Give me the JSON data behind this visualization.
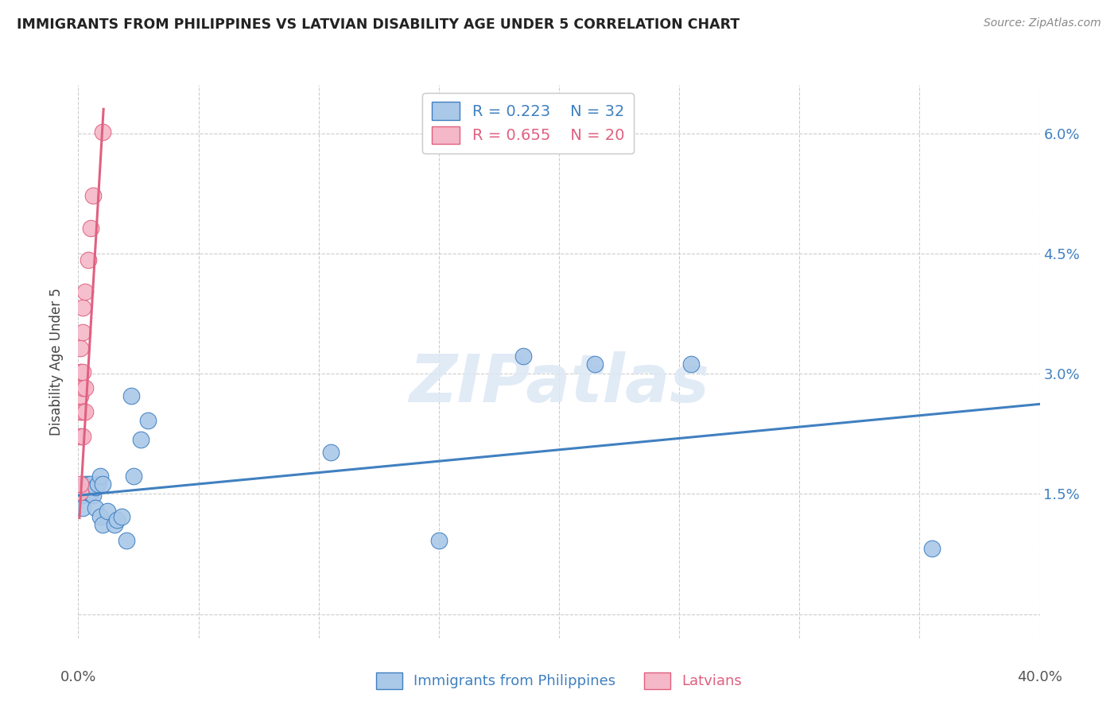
{
  "title": "IMMIGRANTS FROM PHILIPPINES VS LATVIAN DISABILITY AGE UNDER 5 CORRELATION CHART",
  "source": "Source: ZipAtlas.com",
  "ylabel": "Disability Age Under 5",
  "yticks": [
    0.0,
    0.015,
    0.03,
    0.045,
    0.06
  ],
  "ytick_labels": [
    "",
    "1.5%",
    "3.0%",
    "4.5%",
    "6.0%"
  ],
  "xlim": [
    0.0,
    0.4
  ],
  "ylim": [
    -0.003,
    0.066
  ],
  "background_color": "#ffffff",
  "watermark": "ZIPatlas",
  "legend_R1": "R = 0.223",
  "legend_N1": "N = 32",
  "legend_R2": "R = 0.655",
  "legend_N2": "N = 20",
  "blue_color": "#aac8e8",
  "pink_color": "#f5b8c8",
  "blue_line_color": "#4080c0",
  "pink_line_color": "#e06080",
  "blue_scatter": [
    [
      0.001,
      0.0158
    ],
    [
      0.002,
      0.0148
    ],
    [
      0.002,
      0.0132
    ],
    [
      0.003,
      0.0162
    ],
    [
      0.003,
      0.0158
    ],
    [
      0.004,
      0.0162
    ],
    [
      0.004,
      0.0152
    ],
    [
      0.005,
      0.0162
    ],
    [
      0.005,
      0.0152
    ],
    [
      0.006,
      0.0148
    ],
    [
      0.007,
      0.0132
    ],
    [
      0.007,
      0.0158
    ],
    [
      0.008,
      0.0162
    ],
    [
      0.009,
      0.0122
    ],
    [
      0.009,
      0.0172
    ],
    [
      0.01,
      0.0112
    ],
    [
      0.01,
      0.0162
    ],
    [
      0.012,
      0.0128
    ],
    [
      0.015,
      0.0112
    ],
    [
      0.016,
      0.0118
    ],
    [
      0.018,
      0.0122
    ],
    [
      0.02,
      0.0092
    ],
    [
      0.022,
      0.0272
    ],
    [
      0.023,
      0.0172
    ],
    [
      0.026,
      0.0218
    ],
    [
      0.029,
      0.0242
    ],
    [
      0.105,
      0.0202
    ],
    [
      0.15,
      0.0092
    ],
    [
      0.185,
      0.0322
    ],
    [
      0.215,
      0.0312
    ],
    [
      0.255,
      0.0312
    ],
    [
      0.355,
      0.0082
    ]
  ],
  "pink_scatter": [
    [
      0.001,
      0.0152
    ],
    [
      0.001,
      0.0162
    ],
    [
      0.001,
      0.0222
    ],
    [
      0.001,
      0.0252
    ],
    [
      0.001,
      0.0272
    ],
    [
      0.001,
      0.0302
    ],
    [
      0.001,
      0.0332
    ],
    [
      0.002,
      0.0222
    ],
    [
      0.002,
      0.0252
    ],
    [
      0.002,
      0.0282
    ],
    [
      0.002,
      0.0302
    ],
    [
      0.002,
      0.0352
    ],
    [
      0.002,
      0.0382
    ],
    [
      0.003,
      0.0252
    ],
    [
      0.003,
      0.0282
    ],
    [
      0.003,
      0.0402
    ],
    [
      0.004,
      0.0442
    ],
    [
      0.005,
      0.0482
    ],
    [
      0.006,
      0.0522
    ],
    [
      0.01,
      0.0602
    ]
  ],
  "blue_line_x": [
    0.0,
    0.4
  ],
  "blue_line_y": [
    0.0148,
    0.0262
  ],
  "pink_line_x": [
    0.0005,
    0.0105
  ],
  "pink_line_y": [
    0.012,
    0.063
  ]
}
